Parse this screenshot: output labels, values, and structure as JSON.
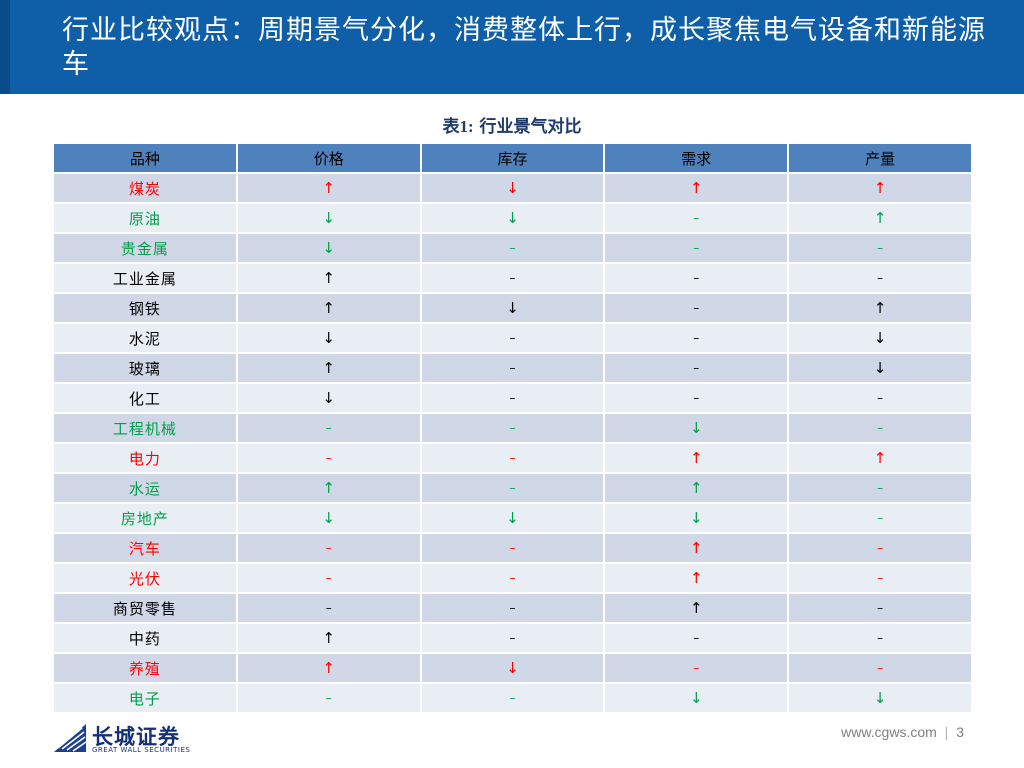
{
  "header": {
    "title": "行业比较观点：周期景气分化，消费整体上行，成长聚焦电气设备和新能源车"
  },
  "caption": {
    "prefix": "表1",
    "colon": ":",
    "text": "  行业景气对比"
  },
  "table": {
    "columns": [
      "品种",
      "价格",
      "库存",
      "需求",
      "产量"
    ],
    "rows": [
      {
        "name": "煤炭",
        "color": "#ff0000",
        "cells": [
          "↑",
          "↓",
          "↑",
          "↑"
        ]
      },
      {
        "name": "原油",
        "color": "#00a04a",
        "cells": [
          "↓",
          "↓",
          "–",
          "↑"
        ]
      },
      {
        "name": "贵金属",
        "color": "#00a04a",
        "cells": [
          "↓",
          "–",
          "–",
          "–"
        ]
      },
      {
        "name": "工业金属",
        "color": "#000000",
        "cells": [
          "↑",
          "–",
          "–",
          "–"
        ]
      },
      {
        "name": "钢铁",
        "color": "#000000",
        "cells": [
          "↑",
          "↓",
          "–",
          "↑"
        ]
      },
      {
        "name": "水泥",
        "color": "#000000",
        "cells": [
          "↓",
          "–",
          "–",
          "↓"
        ]
      },
      {
        "name": "玻璃",
        "color": "#000000",
        "cells": [
          "↑",
          "–",
          "–",
          "↓"
        ]
      },
      {
        "name": "化工",
        "color": "#000000",
        "cells": [
          "↓",
          "–",
          "–",
          "–"
        ]
      },
      {
        "name": "工程机械",
        "color": "#00a04a",
        "cells": [
          "–",
          "–",
          "↓",
          "–"
        ]
      },
      {
        "name": "电力",
        "color": "#ff0000",
        "cells": [
          "–",
          "–",
          "↑",
          "↑"
        ]
      },
      {
        "name": "水运",
        "color": "#00a04a",
        "cells": [
          "↑",
          "–",
          "↑",
          "–"
        ]
      },
      {
        "name": "房地产",
        "color": "#00a04a",
        "cells": [
          "↓",
          "↓",
          "↓",
          "–"
        ]
      },
      {
        "name": "汽车",
        "color": "#ff0000",
        "cells": [
          "–",
          "–",
          "↑",
          "–"
        ]
      },
      {
        "name": "光伏",
        "color": "#ff0000",
        "cells": [
          "–",
          "–",
          "↑",
          "–"
        ]
      },
      {
        "name": "商贸零售",
        "color": "#000000",
        "cells": [
          "–",
          "–",
          "↑",
          "–"
        ]
      },
      {
        "name": "中药",
        "color": "#000000",
        "cells": [
          "↑",
          "–",
          "–",
          "–"
        ]
      },
      {
        "name": "养殖",
        "color": "#ff0000",
        "cells": [
          "↑",
          "↓",
          "–",
          "–"
        ]
      },
      {
        "name": "电子",
        "color": "#00a04a",
        "cells": [
          "–",
          "–",
          "↓",
          "↓"
        ]
      }
    ]
  },
  "footer": {
    "logo_cn": "长城证券",
    "logo_en": "GREAT WALL SECURITIES",
    "url": "www.cgws.com",
    "separator": "|",
    "page": "3"
  },
  "colors": {
    "header_bg": "#0e5fa8",
    "table_header": "#4f81bd",
    "row_odd": "#d0d8e8",
    "row_even": "#e9edf4",
    "up_red": "#ff0000",
    "down_green": "#00a04a"
  }
}
